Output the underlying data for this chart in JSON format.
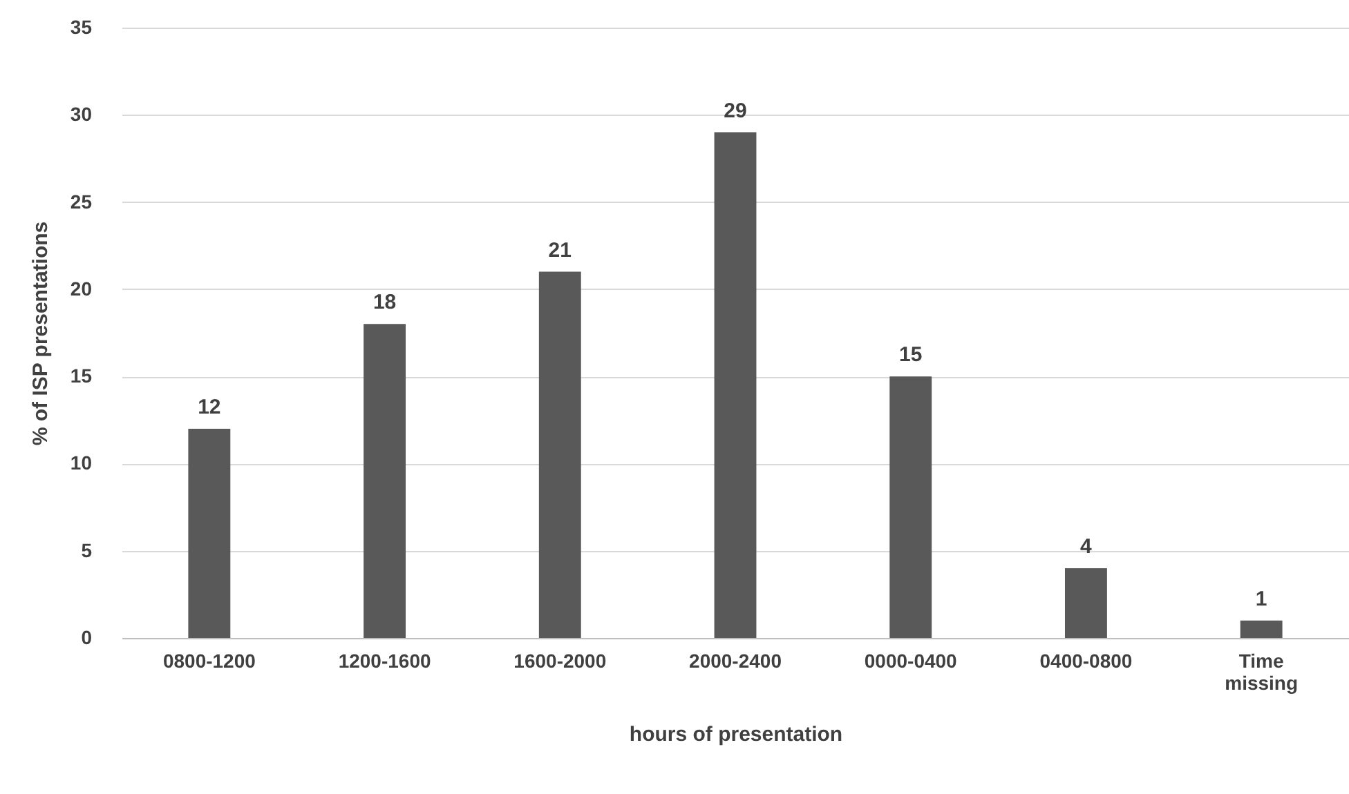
{
  "chart_data": {
    "type": "bar",
    "xlabel": "hours of presentation",
    "ylabel": "% of ISP presentations",
    "categories": [
      "0800-1200",
      "1200-1600",
      "1600-2000",
      "2000-2400",
      "0000-0400",
      "0400-0800",
      "Time missing"
    ],
    "values": [
      12,
      18,
      21,
      29,
      15,
      4,
      1
    ],
    "color": "#595959",
    "ylim": [
      0,
      35
    ],
    "yticks": [
      0,
      5,
      10,
      15,
      20,
      25,
      30,
      35
    ],
    "grid": "y",
    "data_labels": true
  }
}
